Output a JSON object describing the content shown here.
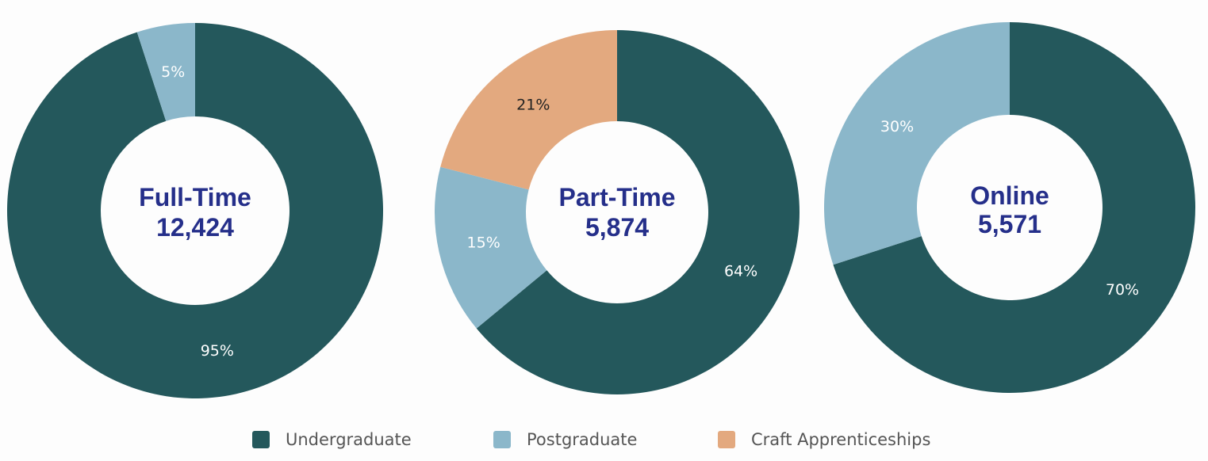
{
  "chart_data": [
    {
      "type": "pie",
      "title": "Full-Time",
      "total": "12,424",
      "slices": [
        {
          "name": "Undergraduate",
          "value": 95,
          "label": "95%"
        },
        {
          "name": "Postgraduate",
          "value": 5,
          "label": "5%"
        }
      ]
    },
    {
      "type": "pie",
      "title": "Part-Time",
      "total": "5,874",
      "slices": [
        {
          "name": "Undergraduate",
          "value": 64,
          "label": "64%"
        },
        {
          "name": "Postgraduate",
          "value": 15,
          "label": "15%"
        },
        {
          "name": "Craft Apprenticeships",
          "value": 21,
          "label": "21%"
        }
      ]
    },
    {
      "type": "pie",
      "title": "Online",
      "total": "5,571",
      "slices": [
        {
          "name": "Undergraduate",
          "value": 70,
          "label": "70%"
        },
        {
          "name": "Postgraduate",
          "value": 30,
          "label": "30%"
        }
      ]
    }
  ],
  "legend": {
    "placement": "bottom-center",
    "items": [
      {
        "label": "Undergraduate",
        "color": "#24585c"
      },
      {
        "label": "Postgraduate",
        "color": "#8bb7ca"
      },
      {
        "label": "Craft Apprenticeships",
        "color": "#e3a97f"
      }
    ]
  },
  "colors": {
    "Undergraduate": "#24585c",
    "Postgraduate": "#8bb7ca",
    "Craft Apprenticeships": "#e3a97f",
    "center_text": "#252f8a",
    "label_on_dark": "#ffffff",
    "label_on_light": "#222222"
  }
}
